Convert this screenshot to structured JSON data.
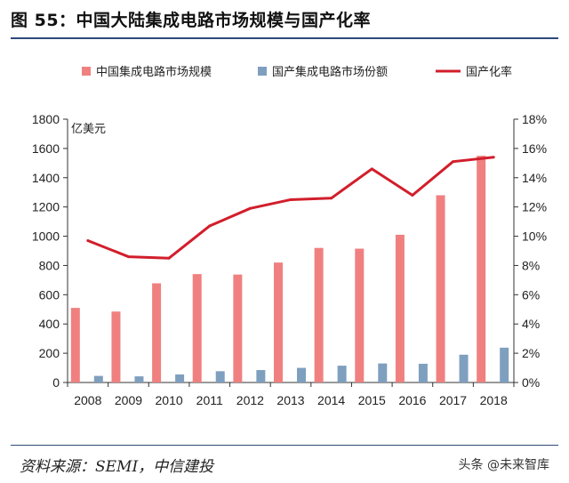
{
  "figure": {
    "title": "图 55：中国大陆集成电路市场规模与国产化率",
    "source": "资料来源：SEMI，中信建投",
    "watermark": "头条 @未来智库"
  },
  "chart_data": {
    "type": "bar",
    "categories": [
      "2008",
      "2009",
      "2010",
      "2011",
      "2012",
      "2013",
      "2014",
      "2015",
      "2016",
      "2017",
      "2018"
    ],
    "y_left": {
      "label": "亿美元",
      "ylim": [
        0,
        1800
      ],
      "ticks": [
        0,
        200,
        400,
        600,
        800,
        1000,
        1200,
        1400,
        1600,
        1800
      ]
    },
    "y_right": {
      "ylim": [
        0,
        18
      ],
      "ticks": [
        "0%",
        "2%",
        "4%",
        "6%",
        "8%",
        "10%",
        "12%",
        "14%",
        "16%",
        "18%"
      ]
    },
    "series": [
      {
        "name": "中国集成电路市场规模",
        "type": "bar",
        "axis": "left",
        "color": "#f08080",
        "values": [
          510,
          485,
          678,
          741,
          738,
          820,
          920,
          915,
          1010,
          1280,
          1550
        ]
      },
      {
        "name": "国产集成电路市场份额",
        "type": "bar",
        "axis": "left",
        "color": "#7f9fbf",
        "values": [
          45,
          42,
          55,
          77,
          85,
          100,
          115,
          130,
          128,
          190,
          238
        ]
      },
      {
        "name": "国产化率",
        "type": "line",
        "axis": "right",
        "color": "#d21e2b",
        "values": [
          9.7,
          8.6,
          8.5,
          10.7,
          11.9,
          12.5,
          12.6,
          14.6,
          12.8,
          15.1,
          15.4
        ]
      }
    ],
    "legend_position": "top",
    "grid": false
  }
}
